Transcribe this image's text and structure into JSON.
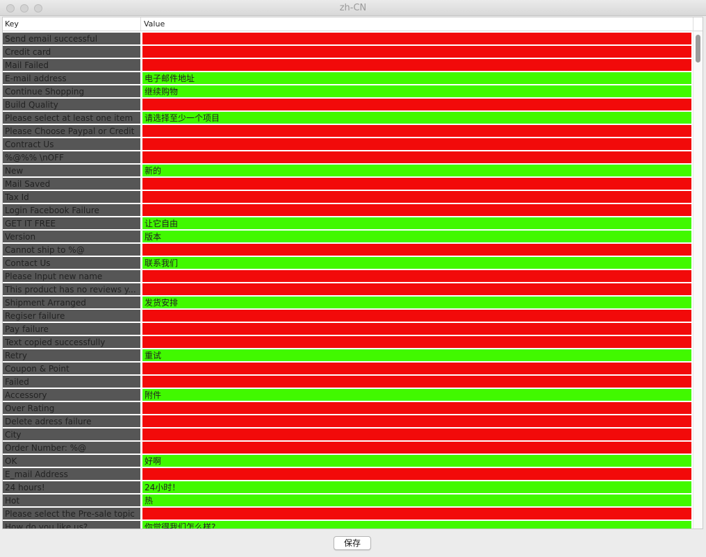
{
  "window": {
    "title": "zh-CN"
  },
  "table": {
    "columns": [
      "Key",
      "Value"
    ],
    "rows": [
      {
        "key": "Send email successful",
        "value": "",
        "status": "red"
      },
      {
        "key": "Credit card",
        "value": "",
        "status": "red"
      },
      {
        "key": "Mail Failed",
        "value": "",
        "status": "red"
      },
      {
        "key": "E-mail address",
        "value": "电子邮件地址",
        "status": "green"
      },
      {
        "key": "Continue Shopping",
        "value": "继续购物",
        "status": "green"
      },
      {
        "key": "Build Quality",
        "value": "",
        "status": "red"
      },
      {
        "key": "Please select at least one item",
        "value": "请选择至少一个项目",
        "status": "green"
      },
      {
        "key": "Please Choose Paypal or Credit",
        "value": "",
        "status": "red"
      },
      {
        "key": "Contract Us",
        "value": "",
        "status": "red"
      },
      {
        "key": "%@%% \\nOFF",
        "value": "",
        "status": "red"
      },
      {
        "key": "New",
        "value": "新的",
        "status": "green"
      },
      {
        "key": "Mail Saved",
        "value": "",
        "status": "red"
      },
      {
        "key": "Tax Id",
        "value": "",
        "status": "red"
      },
      {
        "key": "Login Facebook Failure",
        "value": "",
        "status": "red"
      },
      {
        "key": "GET IT FREE",
        "value": "让它自由",
        "status": "green"
      },
      {
        "key": "Version",
        "value": "版本",
        "status": "green"
      },
      {
        "key": "Cannot ship to %@",
        "value": "",
        "status": "red"
      },
      {
        "key": "Contact Us",
        "value": "联系我们",
        "status": "green"
      },
      {
        "key": "Please Input new name",
        "value": "",
        "status": "red"
      },
      {
        "key": "This product has no reviews y...",
        "value": "",
        "status": "red"
      },
      {
        "key": "Shipment Arranged",
        "value": "发货安排",
        "status": "green"
      },
      {
        "key": "Regiser failure",
        "value": "",
        "status": "red"
      },
      {
        "key": "Pay failure",
        "value": "",
        "status": "red"
      },
      {
        "key": "Text copied successfully",
        "value": "",
        "status": "red"
      },
      {
        "key": "Retry",
        "value": "重试",
        "status": "green"
      },
      {
        "key": "Coupon & Point",
        "value": "",
        "status": "red"
      },
      {
        "key": "Failed",
        "value": "",
        "status": "red"
      },
      {
        "key": "Accessory",
        "value": "附件",
        "status": "green"
      },
      {
        "key": "Over Rating",
        "value": "",
        "status": "red"
      },
      {
        "key": "Delete adress failure",
        "value": "",
        "status": "red"
      },
      {
        "key": "City",
        "value": "",
        "status": "red"
      },
      {
        "key": "Order Number: %@",
        "value": "",
        "status": "red"
      },
      {
        "key": "OK",
        "value": "好啊",
        "status": "green"
      },
      {
        "key": "E_mail Address",
        "value": "",
        "status": "red"
      },
      {
        "key": "24 hours!",
        "value": "24小时！",
        "status": "green"
      },
      {
        "key": "Hot",
        "value": "热",
        "status": "green"
      },
      {
        "key": "Please select the Pre-sale topic",
        "value": "",
        "status": "red"
      },
      {
        "key": "How do you like us?",
        "value": "你觉得我们怎么样?",
        "status": "green"
      }
    ]
  },
  "colors": {
    "missing": "#f20a0a",
    "translated": "#41f900",
    "key_bg": "#565656"
  },
  "footer": {
    "save_label": "保存"
  }
}
